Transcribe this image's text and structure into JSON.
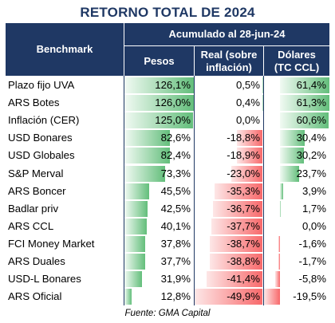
{
  "title": "RETORNO TOTAL DE 2024",
  "header": {
    "benchmark": "Benchmark",
    "group": "Acumulado al 28-jun-24",
    "pesos": "Pesos",
    "real_line1": "Real (sobre",
    "real_line2": "inflación)",
    "usd_line1": "Dólares",
    "usd_line2": "(TC CCL)"
  },
  "source": "Fuente: GMA Capital",
  "colors": {
    "header_bg": "#1F3864",
    "bar_positive": "#63BE7B",
    "bar_negative": "#F8696B"
  },
  "chart_data": {
    "type": "table",
    "title": "RETORNO TOTAL DE 2024",
    "columns": [
      "Pesos",
      "Real (sobre inflación)",
      "Dólares (TC CCL)"
    ],
    "rows": [
      {
        "label": "Plazo fijo UVA",
        "pesos": 126.1,
        "real": 0.5,
        "usd": 61.4,
        "pesos_text": "126,1%",
        "real_text": "0,5%",
        "usd_text": "61,4%"
      },
      {
        "label": "ARS Botes",
        "pesos": 126.0,
        "real": 0.4,
        "usd": 61.3,
        "pesos_text": "126,0%",
        "real_text": "0,4%",
        "usd_text": "61,3%"
      },
      {
        "label": "Inflación (CER)",
        "pesos": 125.0,
        "real": 0.0,
        "usd": 60.6,
        "pesos_text": "125,0%",
        "real_text": "0,0%",
        "usd_text": "60,6%"
      },
      {
        "label": "USD Bonares",
        "pesos": 82.6,
        "real": -18.8,
        "usd": 30.4,
        "pesos_text": "82,6%",
        "real_text": "-18,8%",
        "usd_text": "30,4%"
      },
      {
        "label": "USD Globales",
        "pesos": 82.4,
        "real": -18.9,
        "usd": 30.2,
        "pesos_text": "82,4%",
        "real_text": "-18,9%",
        "usd_text": "30,2%"
      },
      {
        "label": "S&P Merval",
        "pesos": 73.3,
        "real": -23.0,
        "usd": 23.7,
        "pesos_text": "73,3%",
        "real_text": "-23,0%",
        "usd_text": "23,7%"
      },
      {
        "label": "ARS Boncer",
        "pesos": 45.5,
        "real": -35.3,
        "usd": 3.9,
        "pesos_text": "45,5%",
        "real_text": "-35,3%",
        "usd_text": "3,9%"
      },
      {
        "label": "Badlar priv",
        "pesos": 42.5,
        "real": -36.7,
        "usd": 1.7,
        "pesos_text": "42,5%",
        "real_text": "-36,7%",
        "usd_text": "1,7%"
      },
      {
        "label": "ARS CCL",
        "pesos": 40.1,
        "real": -37.7,
        "usd": 0.0,
        "pesos_text": "40,1%",
        "real_text": "-37,7%",
        "usd_text": "0,0%"
      },
      {
        "label": "FCI Money Market",
        "pesos": 37.8,
        "real": -38.7,
        "usd": -1.6,
        "pesos_text": "37,8%",
        "real_text": "-38,7%",
        "usd_text": "-1,6%"
      },
      {
        "label": "ARS Duales",
        "pesos": 37.7,
        "real": -38.8,
        "usd": -1.7,
        "pesos_text": "37,7%",
        "real_text": "-38,8%",
        "usd_text": "-1,7%"
      },
      {
        "label": "USD-L Bonares",
        "pesos": 31.9,
        "real": -41.4,
        "usd": -5.8,
        "pesos_text": "31,9%",
        "real_text": "-41,4%",
        "usd_text": "-5,8%"
      },
      {
        "label": "ARS Oficial",
        "pesos": 12.8,
        "real": -49.9,
        "usd": -19.5,
        "pesos_text": "12,8%",
        "real_text": "-49,9%",
        "usd_text": "-19,5%"
      }
    ]
  }
}
